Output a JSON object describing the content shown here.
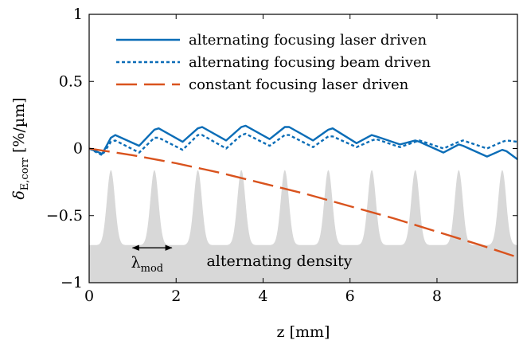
{
  "chart_data": {
    "type": "line",
    "xlabel": "z [mm]",
    "ylabel": {
      "main": "δ",
      "sub": "E,corr",
      "unit": " [%/µm]"
    },
    "xlim": [
      0,
      9.85
    ],
    "ylim": [
      -1,
      1
    ],
    "xticks": [
      0,
      2,
      4,
      6,
      8
    ],
    "yticks": [
      {
        "value": 1,
        "label": "1"
      },
      {
        "value": 0.5,
        "label": "0.5"
      },
      {
        "value": 0,
        "label": "0"
      },
      {
        "value": -0.5,
        "label": "−0.5"
      },
      {
        "value": -1,
        "label": "−1"
      }
    ],
    "grid": false,
    "legend_position": "top",
    "series": [
      {
        "name": "alternating focusing laser driven",
        "color": "#0b6db7",
        "style": "solid",
        "x": [
          0,
          0.3,
          0.5,
          0.6,
          1.15,
          1.5,
          1.6,
          2.15,
          2.5,
          2.6,
          3.15,
          3.5,
          3.6,
          4.15,
          4.5,
          4.6,
          5.15,
          5.5,
          5.6,
          6.15,
          6.5,
          6.6,
          7.15,
          7.5,
          7.6,
          8.15,
          8.5,
          8.6,
          9.15,
          9.5,
          9.6,
          9.85
        ],
        "y": [
          0,
          -0.04,
          0.08,
          0.1,
          0.02,
          0.14,
          0.15,
          0.05,
          0.15,
          0.16,
          0.06,
          0.16,
          0.17,
          0.07,
          0.16,
          0.16,
          0.06,
          0.14,
          0.15,
          0.04,
          0.1,
          0.09,
          0.03,
          0.06,
          0.05,
          -0.03,
          0.03,
          0.02,
          -0.06,
          -0.01,
          -0.02,
          -0.08
        ]
      },
      {
        "name": "alternating focusing beam driven",
        "color": "#0b6db7",
        "style": "dotted",
        "x": [
          0,
          0.3,
          0.5,
          0.6,
          1.15,
          1.5,
          1.6,
          2.15,
          2.5,
          2.6,
          3.15,
          3.5,
          3.6,
          4.15,
          4.5,
          4.6,
          5.15,
          5.5,
          5.6,
          6.15,
          6.5,
          6.6,
          7.15,
          7.5,
          7.6,
          8.15,
          8.5,
          8.6,
          9.15,
          9.5,
          9.6,
          9.85
        ],
        "y": [
          0,
          -0.05,
          0.05,
          0.06,
          -0.03,
          0.08,
          0.08,
          -0.01,
          0.1,
          0.1,
          0.0,
          0.1,
          0.11,
          0.02,
          0.1,
          0.1,
          0.01,
          0.09,
          0.09,
          0.01,
          0.06,
          0.07,
          0.01,
          0.05,
          0.06,
          0.0,
          0.05,
          0.06,
          0.0,
          0.05,
          0.06,
          0.05
        ]
      },
      {
        "name": "constant focusing laser driven",
        "color": "#d9531e",
        "style": "dashed",
        "x": [
          0,
          1,
          2,
          3,
          4,
          5,
          6,
          7,
          8,
          9,
          9.85
        ],
        "y": [
          0,
          -0.05,
          -0.11,
          -0.18,
          -0.26,
          -0.34,
          -0.43,
          -0.52,
          -0.62,
          -0.72,
          -0.81
        ]
      }
    ],
    "background_density": {
      "label": "alternating density",
      "color": "#d8d8d8",
      "peak_positions": [
        0.5,
        1.5,
        2.5,
        3.5,
        4.5,
        5.5,
        6.5,
        7.5,
        8.5,
        9.5
      ],
      "baseline_level": -0.72,
      "peak_level": -0.16
    },
    "annotations": [
      {
        "type": "double-arrow",
        "text_main": "λ",
        "text_sub": "mod",
        "x_from": 1.0,
        "x_to": 1.9,
        "y": -0.74
      }
    ]
  }
}
